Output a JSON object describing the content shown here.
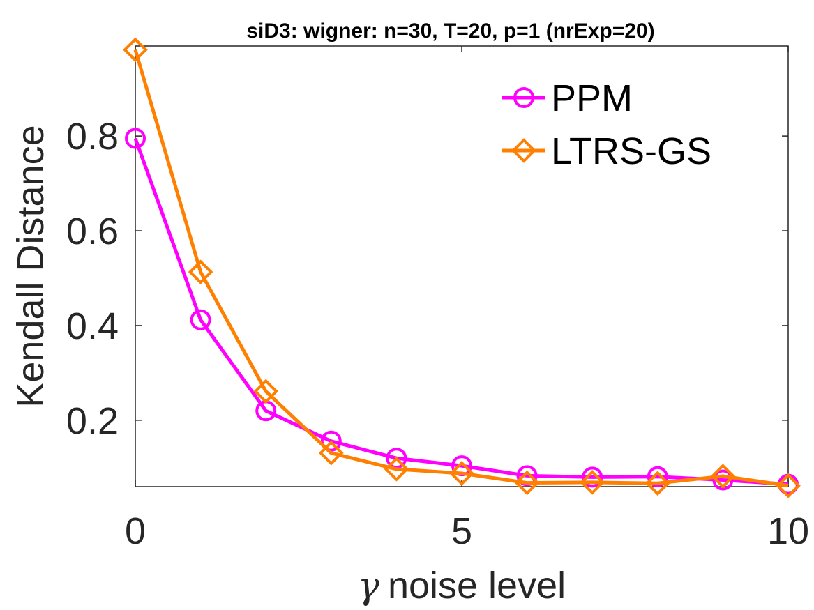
{
  "chart_data": {
    "type": "line",
    "title": "siD3: wigner: n=30, T=20, p=1 (nrExp=20)",
    "xlabel_symbol": "γ",
    "xlabel": "noise level",
    "ylabel": "Kendall Distance",
    "xlim": [
      0,
      10
    ],
    "ylim": [
      0.06,
      0.99
    ],
    "x_ticks": [
      0,
      5,
      10
    ],
    "y_ticks": [
      0.2,
      0.4,
      0.6,
      0.8
    ],
    "x_tick_labels": [
      "0",
      "5",
      "10"
    ],
    "y_tick_labels": [
      "0.2",
      "0.4",
      "0.6",
      "0.8"
    ],
    "grid": false,
    "legend_position": "top-right",
    "x": [
      0,
      1,
      2,
      3,
      4,
      5,
      6,
      7,
      8,
      9,
      10
    ],
    "series": [
      {
        "name": "PPM",
        "color": "#ff00ff",
        "marker": "circle",
        "values": [
          0.795,
          0.412,
          0.22,
          0.156,
          0.12,
          0.104,
          0.083,
          0.08,
          0.081,
          0.074,
          0.065
        ]
      },
      {
        "name": "LTRS-GS",
        "color": "#ff8000",
        "marker": "diamond",
        "values": [
          0.982,
          0.513,
          0.261,
          0.131,
          0.097,
          0.088,
          0.068,
          0.069,
          0.067,
          0.082,
          0.062
        ]
      }
    ]
  }
}
